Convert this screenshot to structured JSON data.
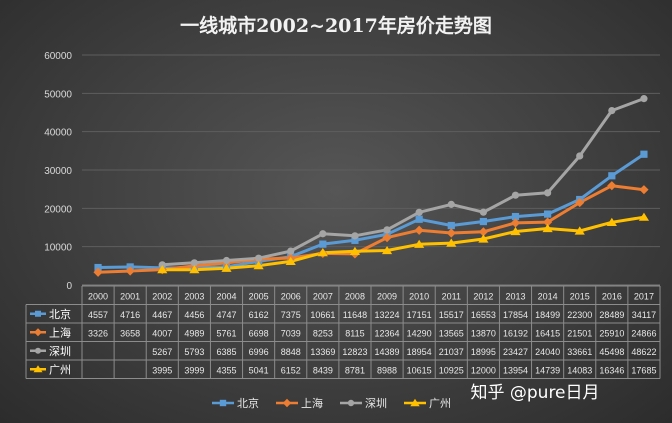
{
  "chart_data": {
    "type": "line",
    "title": "一线城市2002~2017年房价走势图",
    "xlabel": "",
    "ylabel": "",
    "ylim": [
      0,
      60000
    ],
    "yticks": [
      "0",
      "10000",
      "20000",
      "30000",
      "40000",
      "50000",
      "60000"
    ],
    "ytick_values": [
      0,
      10000,
      20000,
      30000,
      40000,
      50000,
      60000
    ],
    "categories": [
      "2000",
      "2001",
      "2002",
      "2003",
      "2004",
      "2005",
      "2006",
      "2007",
      "2008",
      "2009",
      "2010",
      "2011",
      "2012",
      "2013",
      "2014",
      "2015",
      "2016",
      "2017"
    ],
    "series": [
      {
        "name": "北京",
        "color": "#5b9bd5",
        "marker": "square",
        "values": [
          4557,
          4716,
          4467,
          4456,
          4747,
          6162,
          7375,
          10661,
          11648,
          13224,
          17151,
          15517,
          16553,
          17854,
          18499,
          22300,
          28489,
          34117
        ]
      },
      {
        "name": "上海",
        "color": "#ed7d31",
        "marker": "diamond",
        "values": [
          3326,
          3658,
          4007,
          4989,
          5761,
          6698,
          7039,
          8253,
          8115,
          12364,
          14290,
          13565,
          13870,
          16192,
          16415,
          21501,
          25910,
          24866
        ]
      },
      {
        "name": "深圳",
        "color": "#a5a5a5",
        "marker": "circle",
        "values": [
          null,
          null,
          5267,
          5793,
          6385,
          6996,
          8848,
          13369,
          12823,
          14389,
          18954,
          21037,
          18995,
          23427,
          24040,
          33661,
          45498,
          48622
        ]
      },
      {
        "name": "广州",
        "color": "#ffc000",
        "marker": "triangle",
        "values": [
          null,
          null,
          3995,
          3999,
          4355,
          5041,
          6152,
          8439,
          8781,
          8988,
          10615,
          10925,
          12000,
          13954,
          14739,
          14083,
          16346,
          17685
        ]
      }
    ],
    "legend": "bottom",
    "grid": true
  },
  "watermark": "知乎 @pure日月"
}
